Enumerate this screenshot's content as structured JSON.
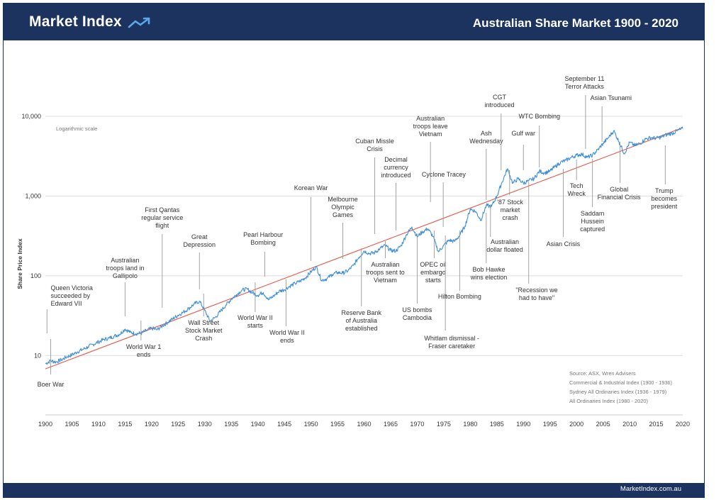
{
  "header": {
    "brand": "Market Index",
    "title": "Australian Share Market 1900 - 2020"
  },
  "footer": {
    "site": "MarketIndex.com.au"
  },
  "colors": {
    "navy": "#1c3360",
    "series": "#3d8fd6",
    "trend": "#e8584a",
    "grid": "#dddddd",
    "text": "#333333"
  },
  "chart_data": {
    "type": "line",
    "title": "Australian Share Market 1900 - 2020",
    "xlabel": "",
    "ylabel": "Share Price Index",
    "scale_note": "Logarithmic scale",
    "y_scale": "log",
    "xlim": [
      1900,
      2020
    ],
    "ylim": [
      1.8,
      10000
    ],
    "x_ticks": [
      1900,
      1905,
      1910,
      1915,
      1920,
      1925,
      1930,
      1935,
      1940,
      1945,
      1950,
      1955,
      1960,
      1965,
      1970,
      1975,
      1980,
      1985,
      1990,
      1995,
      2000,
      2005,
      2010,
      2015,
      2020
    ],
    "y_ticks": [
      {
        "value": 10,
        "label": "10"
      },
      {
        "value": 100,
        "label": "100"
      },
      {
        "value": 1000,
        "label": "1,000"
      },
      {
        "value": 10000,
        "label": "10,000"
      }
    ],
    "series": [
      {
        "name": "Share Price Index",
        "points": [
          [
            1900,
            7.9
          ],
          [
            1901,
            8.6
          ],
          [
            1902,
            8.3
          ],
          [
            1903,
            8.8
          ],
          [
            1904,
            9.6
          ],
          [
            1905,
            10.2
          ],
          [
            1906,
            11.1
          ],
          [
            1907,
            11.9
          ],
          [
            1908,
            12.8
          ],
          [
            1909,
            13.8
          ],
          [
            1910,
            14.8
          ],
          [
            1911,
            15.9
          ],
          [
            1912,
            16.5
          ],
          [
            1913,
            17.5
          ],
          [
            1914,
            18.5
          ],
          [
            1915,
            21.5
          ],
          [
            1916,
            19.5
          ],
          [
            1917,
            18.8
          ],
          [
            1918,
            19.0
          ],
          [
            1919,
            20.5
          ],
          [
            1920,
            22
          ],
          [
            1921,
            21
          ],
          [
            1922,
            23.5
          ],
          [
            1923,
            26
          ],
          [
            1924,
            29
          ],
          [
            1925,
            32
          ],
          [
            1926,
            35
          ],
          [
            1927,
            39
          ],
          [
            1928,
            44
          ],
          [
            1929,
            48
          ],
          [
            1930,
            37
          ],
          [
            1931,
            27
          ],
          [
            1932,
            30
          ],
          [
            1933,
            36
          ],
          [
            1934,
            43
          ],
          [
            1935,
            51
          ],
          [
            1936,
            58
          ],
          [
            1937,
            66
          ],
          [
            1938,
            68
          ],
          [
            1939,
            61
          ],
          [
            1940,
            57
          ],
          [
            1941,
            62
          ],
          [
            1942,
            50
          ],
          [
            1943,
            56
          ],
          [
            1944,
            64
          ],
          [
            1945,
            67
          ],
          [
            1946,
            74
          ],
          [
            1947,
            80
          ],
          [
            1948,
            86
          ],
          [
            1949,
            95
          ],
          [
            1950,
            112
          ],
          [
            1951,
            130
          ],
          [
            1952,
            88
          ],
          [
            1953,
            92
          ],
          [
            1954,
            104
          ],
          [
            1955,
            110
          ],
          [
            1956,
            108
          ],
          [
            1957,
            116
          ],
          [
            1958,
            135
          ],
          [
            1959,
            170
          ],
          [
            1960,
            205
          ],
          [
            1961,
            190
          ],
          [
            1962,
            195
          ],
          [
            1963,
            220
          ],
          [
            1964,
            240
          ],
          [
            1965,
            208
          ],
          [
            1966,
            205
          ],
          [
            1967,
            240
          ],
          [
            1968,
            330
          ],
          [
            1969,
            410
          ],
          [
            1970,
            310
          ],
          [
            1971,
            355
          ],
          [
            1972,
            390
          ],
          [
            1973,
            310
          ],
          [
            1974,
            200
          ],
          [
            1975,
            240
          ],
          [
            1976,
            280
          ],
          [
            1977,
            270
          ],
          [
            1978,
            320
          ],
          [
            1979,
            420
          ],
          [
            1980,
            690
          ],
          [
            1981,
            640
          ],
          [
            1982,
            500
          ],
          [
            1983,
            760
          ],
          [
            1984,
            740
          ],
          [
            1985,
            1000
          ],
          [
            1986,
            1500
          ],
          [
            1987,
            2200
          ],
          [
            1988,
            1450
          ],
          [
            1989,
            1650
          ],
          [
            1990,
            1450
          ],
          [
            1991,
            1550
          ],
          [
            1992,
            1650
          ],
          [
            1993,
            2050
          ],
          [
            1994,
            1950
          ],
          [
            1995,
            2050
          ],
          [
            1996,
            2350
          ],
          [
            1997,
            2650
          ],
          [
            1998,
            2800
          ],
          [
            1999,
            3050
          ],
          [
            2000,
            3250
          ],
          [
            2001,
            3350
          ],
          [
            2002,
            3050
          ],
          [
            2003,
            3250
          ],
          [
            2004,
            3800
          ],
          [
            2005,
            4550
          ],
          [
            2006,
            5400
          ],
          [
            2007,
            6600
          ],
          [
            2008,
            4800
          ],
          [
            2009,
            3400
          ],
          [
            2010,
            4700
          ],
          [
            2011,
            4300
          ],
          [
            2012,
            4600
          ],
          [
            2013,
            5200
          ],
          [
            2014,
            5400
          ],
          [
            2015,
            5300
          ],
          [
            2016,
            5500
          ],
          [
            2017,
            5900
          ],
          [
            2018,
            6100
          ],
          [
            2019,
            6600
          ],
          [
            2020,
            7000
          ]
        ]
      },
      {
        "name": "Trend",
        "points": [
          [
            1900,
            6.8
          ],
          [
            2020,
            7200
          ]
        ]
      }
    ],
    "events": [
      {
        "lines": [
          "Boer War"
        ],
        "year": 1901,
        "ty": 545,
        "lx": 1901,
        "ly1": 478,
        "ly2": 528,
        "anchor": "middle"
      },
      {
        "lines": [
          "Queen Victoria",
          "succeeded by",
          "Edward VII"
        ],
        "year": 1901,
        "ty": 409,
        "lx": 1900.3,
        "ly1": 436,
        "ly2": 470,
        "anchor": "start"
      },
      {
        "lines": [
          "Australian",
          "troops land in",
          "Gallipolo"
        ],
        "year": 1915,
        "ty": 370,
        "lx": 1915,
        "ly1": 398,
        "ly2": 446,
        "anchor": "middle"
      },
      {
        "lines": [
          "World War 1",
          "ends"
        ],
        "year": 1918.5,
        "ty": 492,
        "lx": 1918,
        "ly1": 452,
        "ly2": 480,
        "anchor": "middle"
      },
      {
        "lines": [
          "First Qantas",
          "regular service",
          "flight"
        ],
        "year": 1922,
        "ty": 299,
        "lx": 1922,
        "ly1": 330,
        "ly2": 434,
        "anchor": "middle"
      },
      {
        "lines": [
          "Great",
          "Depression"
        ],
        "year": 1929,
        "ty": 337,
        "lx": 1929,
        "ly1": 356,
        "ly2": 408,
        "anchor": "middle"
      },
      {
        "lines": [
          "Wall Street",
          "Stock Market",
          "Crash"
        ],
        "year": 1929.8,
        "ty": 458,
        "lx": 1929.8,
        "ly1": 414,
        "ly2": 446,
        "anchor": "middle"
      },
      {
        "lines": [
          "Pearl Harbour",
          "Bombing"
        ],
        "year": 1941,
        "ty": 334,
        "lx": 1941.3,
        "ly1": 355,
        "ly2": 390,
        "anchor": "middle"
      },
      {
        "lines": [
          "World War II",
          "starts"
        ],
        "year": 1939.5,
        "ty": 451,
        "lx": 1939.5,
        "ly1": 398,
        "ly2": 440,
        "anchor": "middle"
      },
      {
        "lines": [
          "World War II",
          "ends"
        ],
        "year": 1945.5,
        "ty": 472,
        "lx": 1945.3,
        "ly1": 394,
        "ly2": 460,
        "anchor": "middle"
      },
      {
        "lines": [
          "Korean War"
        ],
        "year": 1950,
        "ty": 268,
        "lx": 1950,
        "ly1": 278,
        "ly2": 368,
        "anchor": "middle"
      },
      {
        "lines": [
          "Melbourne",
          "Olympic",
          "Games"
        ],
        "year": 1956,
        "ty": 284,
        "lx": 1956,
        "ly1": 314,
        "ly2": 365,
        "anchor": "middle"
      },
      {
        "lines": [
          "Reserve Bank",
          "of Australia",
          "established"
        ],
        "year": 1959.5,
        "ty": 444,
        "lx": 1959.5,
        "ly1": 350,
        "ly2": 432,
        "anchor": "middle"
      },
      {
        "lines": [
          "Cuban Missle",
          "Crisis"
        ],
        "year": 1962,
        "ty": 202,
        "lx": 1962,
        "ly1": 222,
        "ly2": 330,
        "anchor": "middle"
      },
      {
        "lines": [
          "Australian",
          "troops sent to",
          "Vietnam"
        ],
        "year": 1964,
        "ty": 376,
        "lx": 1964,
        "ly1": 340,
        "ly2": 364,
        "anchor": "middle"
      },
      {
        "lines": [
          "Decimal",
          "currency",
          "introduced"
        ],
        "year": 1966,
        "ty": 228,
        "lx": 1966,
        "ly1": 258,
        "ly2": 325,
        "anchor": "middle"
      },
      {
        "lines": [
          "US bombs",
          "Cambodia"
        ],
        "year": 1970,
        "ty": 440,
        "lx": 1970,
        "ly1": 330,
        "ly2": 428,
        "anchor": "middle"
      },
      {
        "lines": [
          "Australian",
          "troops leave",
          "Vietnam"
        ],
        "year": 1972.5,
        "ty": 170,
        "lx": 1972.5,
        "ly1": 200,
        "ly2": 285,
        "anchor": "middle"
      },
      {
        "lines": [
          "OPEC oil",
          "embargo",
          "starts"
        ],
        "year": 1973,
        "ty": 376,
        "lx": 1973.2,
        "ly1": 325,
        "ly2": 364,
        "anchor": "middle"
      },
      {
        "lines": [
          "Cyclone Tracey"
        ],
        "year": 1975,
        "ty": 249,
        "lx": 1974.9,
        "ly1": 257,
        "ly2": 320,
        "anchor": "middle"
      },
      {
        "lines": [
          "Whitlam dismissal -",
          "Fraser caretaker"
        ],
        "year": 1976.5,
        "ty": 480,
        "lx": 1975.3,
        "ly1": 332,
        "ly2": 466,
        "anchor": "middle"
      },
      {
        "lines": [
          "Hilton Bombing"
        ],
        "year": 1978,
        "ty": 421,
        "lx": 1978,
        "ly1": 325,
        "ly2": 410,
        "anchor": "middle"
      },
      {
        "lines": [
          "Ash",
          "Wednesday"
        ],
        "year": 1983,
        "ty": 191,
        "lx": 1983,
        "ly1": 210,
        "ly2": 282,
        "anchor": "middle"
      },
      {
        "lines": [
          "Bob Hawke",
          "wins election"
        ],
        "year": 1983.5,
        "ty": 383,
        "lx": 1983,
        "ly1": 300,
        "ly2": 371,
        "anchor": "middle"
      },
      {
        "lines": [
          "Australian",
          "dollar floated"
        ],
        "year": 1986.5,
        "ty": 344,
        "lx": 1983.8,
        "ly1": 290,
        "ly2": 334,
        "anchor": "middle"
      },
      {
        "lines": [
          "CGT",
          "introduced"
        ],
        "year": 1985.5,
        "ty": 140,
        "lx": 1985.8,
        "ly1": 160,
        "ly2": 240,
        "anchor": "middle"
      },
      {
        "lines": [
          "'87 Stock",
          "market",
          "crash"
        ],
        "year": 1987.5,
        "ty": 288,
        "lx": 1987.4,
        "ly1": 240,
        "ly2": 275,
        "anchor": "middle"
      },
      {
        "lines": [
          "Gulf war"
        ],
        "year": 1990,
        "ty": 191,
        "lx": 1990,
        "ly1": 204,
        "ly2": 240,
        "anchor": "middle"
      },
      {
        "lines": [
          "WTC Bombing"
        ],
        "year": 1993,
        "ty": 167,
        "lx": 1993,
        "ly1": 177,
        "ly2": 236,
        "anchor": "middle"
      },
      {
        "lines": [
          "\"Recession we",
          "had to have\""
        ],
        "year": 1992.5,
        "ty": 412,
        "lx": 1991,
        "ly1": 256,
        "ly2": 400,
        "anchor": "middle"
      },
      {
        "lines": [
          "Asian Crisis"
        ],
        "year": 1997.5,
        "ty": 347,
        "lx": 1997.5,
        "ly1": 238,
        "ly2": 334,
        "anchor": "middle"
      },
      {
        "lines": [
          "Tech",
          "Wreck"
        ],
        "year": 2000,
        "ty": 265,
        "lx": 2000,
        "ly1": 225,
        "ly2": 254,
        "anchor": "middle"
      },
      {
        "lines": [
          "September 11",
          "Terror Attacks"
        ],
        "year": 2001.5,
        "ty": 114,
        "lx": 2001.7,
        "ly1": 134,
        "ly2": 210,
        "anchor": "middle"
      },
      {
        "lines": [
          "Saddam",
          "Hussein",
          "captured"
        ],
        "year": 2003,
        "ty": 304,
        "lx": 2003,
        "ly1": 224,
        "ly2": 292,
        "anchor": "middle"
      },
      {
        "lines": [
          "Asian Tsunami"
        ],
        "year": 2006.5,
        "ty": 141,
        "lx": 2004.8,
        "ly1": 150,
        "ly2": 200,
        "anchor": "middle"
      },
      {
        "lines": [
          "Global",
          "Financial Crisis"
        ],
        "year": 2008,
        "ty": 270,
        "lx": 2008.2,
        "ly1": 200,
        "ly2": 258,
        "anchor": "middle"
      },
      {
        "lines": [
          "Trump",
          "becomes",
          "president"
        ],
        "year": 2016.5,
        "ty": 272,
        "lx": 2016.7,
        "ly1": 205,
        "ly2": 260,
        "anchor": "middle"
      }
    ],
    "sources": [
      "Source: ASX, Wren Advisers",
      "Commercial & Industrial Index (1900 - 1936)",
      "Sydney All Ordinaries Index (1936 - 1979)",
      "All Ordinaries Index (1980 - 2020)"
    ]
  }
}
